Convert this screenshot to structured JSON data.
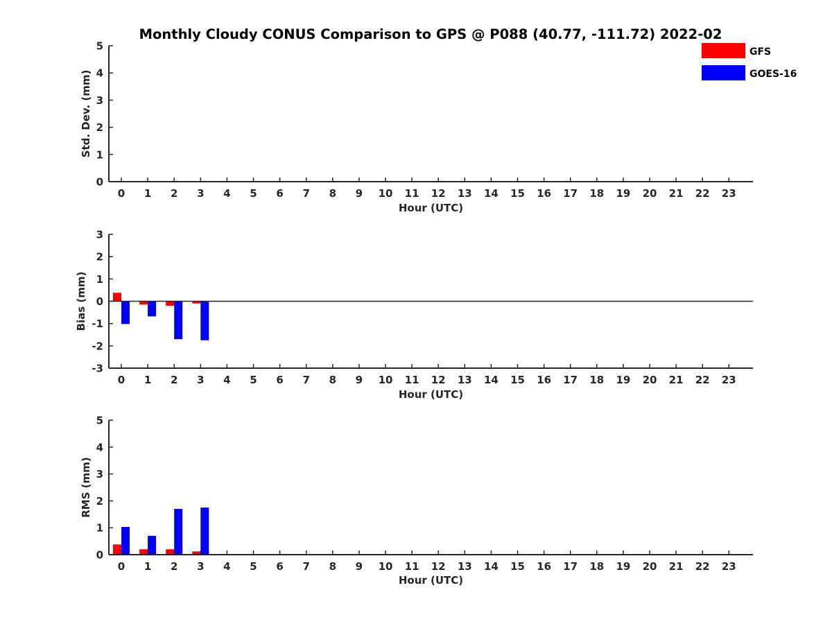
{
  "chart_data": {
    "type": "bar",
    "title": "Monthly Cloudy CONUS Comparison to GPS @ P088 (40.77, -111.72) 2022-02",
    "legend": {
      "placement": "top-right",
      "entries": [
        {
          "name": "GFS",
          "color": "#ff0000"
        },
        {
          "name": "GOES-16",
          "color": "#0000ff"
        }
      ]
    },
    "categories": [
      "0",
      "1",
      "2",
      "3",
      "4",
      "5",
      "6",
      "7",
      "8",
      "9",
      "10",
      "11",
      "12",
      "13",
      "14",
      "15",
      "16",
      "17",
      "18",
      "19",
      "20",
      "21",
      "22",
      "23"
    ],
    "panels": [
      {
        "id": "std",
        "ylabel": "Std. Dev. (mm)",
        "xlabel": "Hour (UTC)",
        "ylim": [
          0,
          5
        ],
        "yticks": [
          0,
          1,
          2,
          3,
          4,
          5
        ],
        "zero_line": false,
        "series": [
          {
            "name": "GFS",
            "color": "#ff0000",
            "values": []
          },
          {
            "name": "GOES-16",
            "color": "#0000ff",
            "values": []
          }
        ]
      },
      {
        "id": "bias",
        "ylabel": "Bias (mm)",
        "xlabel": "Hour (UTC)",
        "ylim": [
          -3,
          3
        ],
        "yticks": [
          -3,
          -2,
          -1,
          0,
          1,
          2,
          3
        ],
        "zero_line": true,
        "series": [
          {
            "name": "GFS",
            "color": "#ff0000",
            "values": [
              0.38,
              -0.15,
              -0.2,
              -0.1
            ]
          },
          {
            "name": "GOES-16",
            "color": "#0000ff",
            "values": [
              -1.02,
              -0.68,
              -1.7,
              -1.75
            ]
          }
        ]
      },
      {
        "id": "rms",
        "ylabel": "RMS (mm)",
        "xlabel": "Hour (UTC)",
        "ylim": [
          0,
          5
        ],
        "yticks": [
          0,
          1,
          2,
          3,
          4,
          5
        ],
        "zero_line": false,
        "series": [
          {
            "name": "GFS",
            "color": "#ff0000",
            "values": [
              0.38,
              0.2,
              0.2,
              0.12
            ]
          },
          {
            "name": "GOES-16",
            "color": "#0000ff",
            "values": [
              1.03,
              0.7,
              1.7,
              1.75
            ]
          }
        ]
      }
    ]
  }
}
